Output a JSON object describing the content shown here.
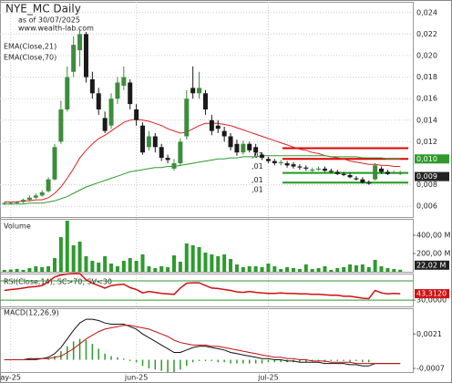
{
  "chart_data": {
    "type": "candlestick",
    "title": "NYE_MC Daily",
    "subtitle": "as of 30/07/2025",
    "source": "www.wealth-lab.com",
    "xlim": [
      -0.7,
      65
    ],
    "xticks": [
      {
        "value": 1,
        "label": "ay-25"
      },
      {
        "value": 21,
        "label": "jun-25"
      },
      {
        "value": 42,
        "label": "jul-25"
      }
    ],
    "ylim": [
      0.005,
      0.025
    ],
    "yticks": [
      {
        "value": 0.024,
        "label": "0,024"
      },
      {
        "value": 0.022,
        "label": "0,022"
      },
      {
        "value": 0.02,
        "label": "0,020"
      },
      {
        "value": 0.018,
        "label": "0,018"
      },
      {
        "value": 0.016,
        "label": "0,016"
      },
      {
        "value": 0.014,
        "label": "0,014"
      },
      {
        "value": 0.012,
        "label": "0,012"
      },
      {
        "value": 0.008,
        "label": "0,008"
      },
      {
        "value": 0.006,
        "label": "0,006"
      }
    ],
    "grid": true,
    "up_color": "#3d8c3d",
    "down_color": "#1a1a1a",
    "open": [
      0.0062,
      0.0063,
      0.0063,
      0.0064,
      0.0066,
      0.0068,
      0.007,
      0.0074,
      0.0085,
      0.012,
      0.015,
      0.0185,
      0.0205,
      0.022,
      0.0178,
      0.0165,
      0.0142,
      0.0135,
      0.016,
      0.0172,
      0.0175,
      0.015,
      0.0135,
      0.0115,
      0.0125,
      0.0115,
      0.0105,
      0.0095,
      0.01,
      0.0125,
      0.017,
      0.0165,
      0.0165,
      0.014,
      0.0135,
      0.013,
      0.0125,
      0.0118,
      0.011,
      0.0118,
      0.0115,
      0.0108,
      0.0104,
      0.0102,
      0.01,
      0.01,
      0.0099,
      0.0097,
      0.0096,
      0.0093,
      0.0094,
      0.0095,
      0.0093,
      0.0092,
      0.009,
      0.0089,
      0.0086,
      0.0085,
      0.0082,
      0.0085,
      0.0095,
      0.0092,
      0.0091,
      0.009
    ],
    "high": [
      0.0064,
      0.0064,
      0.0065,
      0.0067,
      0.007,
      0.0072,
      0.0075,
      0.0087,
      0.0118,
      0.0158,
      0.019,
      0.0218,
      0.0225,
      0.0222,
      0.0185,
      0.017,
      0.0148,
      0.0165,
      0.018,
      0.019,
      0.0178,
      0.0155,
      0.0138,
      0.013,
      0.0128,
      0.0118,
      0.0108,
      0.0104,
      0.0123,
      0.0168,
      0.019,
      0.0185,
      0.0168,
      0.0145,
      0.014,
      0.0134,
      0.0128,
      0.0122,
      0.0121,
      0.012,
      0.0118,
      0.011,
      0.0106,
      0.0104,
      0.0103,
      0.0102,
      0.0101,
      0.0099,
      0.0098,
      0.0096,
      0.0097,
      0.0097,
      0.0095,
      0.0094,
      0.0092,
      0.0091,
      0.0088,
      0.0087,
      0.0084,
      0.01,
      0.0097,
      0.0094,
      0.0093,
      0.0093
    ],
    "low": [
      0.0061,
      0.0062,
      0.0062,
      0.0063,
      0.0065,
      0.0067,
      0.0069,
      0.0073,
      0.0084,
      0.0118,
      0.0148,
      0.018,
      0.019,
      0.0175,
      0.016,
      0.0145,
      0.0128,
      0.0132,
      0.0155,
      0.0168,
      0.015,
      0.0135,
      0.0108,
      0.0112,
      0.011,
      0.0102,
      0.01,
      0.0093,
      0.0098,
      0.0122,
      0.016,
      0.016,
      0.0145,
      0.0126,
      0.0128,
      0.012,
      0.0112,
      0.0107,
      0.0108,
      0.011,
      0.0107,
      0.0103,
      0.01,
      0.0098,
      0.0098,
      0.0096,
      0.0095,
      0.0094,
      0.0093,
      0.0092,
      0.0093,
      0.0092,
      0.0091,
      0.0089,
      0.0088,
      0.0086,
      0.0084,
      0.0081,
      0.008,
      0.0084,
      0.009,
      0.0089,
      0.009,
      0.0089
    ],
    "close": [
      0.0063,
      0.0063,
      0.0064,
      0.0066,
      0.0068,
      0.007,
      0.0073,
      0.0085,
      0.0115,
      0.015,
      0.018,
      0.021,
      0.022,
      0.018,
      0.0165,
      0.015,
      0.013,
      0.016,
      0.0175,
      0.018,
      0.0155,
      0.014,
      0.011,
      0.0125,
      0.0115,
      0.0105,
      0.0103,
      0.01,
      0.012,
      0.016,
      0.0165,
      0.017,
      0.015,
      0.013,
      0.0132,
      0.0125,
      0.0115,
      0.011,
      0.0118,
      0.0112,
      0.011,
      0.0105,
      0.0102,
      0.01,
      0.0101,
      0.0098,
      0.0097,
      0.0096,
      0.0095,
      0.0094,
      0.0095,
      0.0093,
      0.0092,
      0.009,
      0.0089,
      0.0087,
      0.0085,
      0.0082,
      0.0081,
      0.0098,
      0.0092,
      0.009,
      0.0091,
      0.0091
    ],
    "close_label": "0,009",
    "series": [
      {
        "name": "EMA(Close,21)",
        "color": "#e02020",
        "values": [
          0.0064,
          0.0064,
          0.0064,
          0.0065,
          0.0065,
          0.0066,
          0.0066,
          0.0068,
          0.0072,
          0.0078,
          0.0086,
          0.0095,
          0.0105,
          0.0112,
          0.0118,
          0.0123,
          0.0126,
          0.013,
          0.0134,
          0.0138,
          0.014,
          0.0141,
          0.014,
          0.0139,
          0.0137,
          0.0135,
          0.0132,
          0.013,
          0.0128,
          0.0129,
          0.0132,
          0.0135,
          0.0137,
          0.0137,
          0.0137,
          0.0136,
          0.0135,
          0.0133,
          0.0131,
          0.0129,
          0.0127,
          0.0125,
          0.0123,
          0.0121,
          0.0119,
          0.0117,
          0.0115,
          0.0113,
          0.0112,
          0.011,
          0.0109,
          0.0107,
          0.0106,
          0.0105,
          0.0104,
          0.0102,
          0.0101,
          0.01,
          0.0099,
          0.0099,
          0.0098,
          0.0098,
          0.0097,
          0.0097
        ]
      },
      {
        "name": "EMA(Close,70)",
        "color": "#2e9a2e",
        "values": [
          0.0062,
          0.0062,
          0.0062,
          0.0062,
          0.0063,
          0.0063,
          0.0063,
          0.0064,
          0.0065,
          0.0067,
          0.0069,
          0.0072,
          0.0075,
          0.0078,
          0.008,
          0.0082,
          0.0084,
          0.0086,
          0.0088,
          0.009,
          0.0092,
          0.0093,
          0.0094,
          0.0095,
          0.0096,
          0.0096,
          0.0097,
          0.0097,
          0.0098,
          0.0099,
          0.01,
          0.0101,
          0.0102,
          0.0103,
          0.0104,
          0.0104,
          0.0105,
          0.0105,
          0.0106,
          0.0106,
          0.0106,
          0.0107,
          0.0107,
          0.0107,
          0.0107,
          0.0107,
          0.0107,
          0.0107,
          0.0107,
          0.0107,
          0.0107,
          0.0107,
          0.0106,
          0.0106,
          0.0106,
          0.0106,
          0.0106,
          0.0105,
          0.0105,
          0.0105,
          0.0105,
          0.0104,
          0.0104,
          0.0104
        ],
        "last_label": "0,010"
      }
    ],
    "price_lines": [
      {
        "value": 0.0114,
        "label": ",01",
        "color": "#e00000"
      },
      {
        "value": 0.0104,
        "label": ",01",
        "color": "#e00000"
      },
      {
        "value": 0.0091,
        "label": ",01",
        "color": "#1e9a1e"
      },
      {
        "value": 0.0082,
        "label": ",01",
        "color": "#1e9a1e"
      }
    ],
    "volume": {
      "title": "Volume",
      "color": "#2e9a2e",
      "ylim": [
        0,
        580
      ],
      "yticks": [
        {
          "value": 400,
          "label": "400,00 M"
        },
        {
          "value": 200,
          "label": "200,00 M"
        }
      ],
      "values": [
        20,
        25,
        30,
        20,
        40,
        60,
        50,
        60,
        150,
        380,
        560,
        290,
        330,
        170,
        120,
        100,
        170,
        90,
        60,
        120,
        150,
        120,
        190,
        60,
        40,
        60,
        50,
        180,
        110,
        310,
        290,
        270,
        210,
        190,
        170,
        190,
        140,
        80,
        50,
        60,
        60,
        50,
        90,
        60,
        30,
        50,
        40,
        30,
        80,
        30,
        40,
        60,
        20,
        40,
        50,
        80,
        70,
        80,
        50,
        130,
        60,
        40,
        30,
        22.02
      ],
      "last_label": "22,02 M"
    },
    "rsi": {
      "title": "RSI(Close,14), SC>70, SV<30",
      "color": "#d01010",
      "level_color": "#2e9a2e",
      "ylim": [
        17,
        85
      ],
      "levels": [
        70,
        30
      ],
      "yticks": [
        {
          "value": 30,
          "label": "30,0000"
        }
      ],
      "values": [
        50,
        52,
        53,
        55,
        57,
        58,
        60,
        68,
        78,
        82,
        84,
        85,
        85,
        72,
        65,
        60,
        55,
        60,
        62,
        63,
        56,
        52,
        45,
        48,
        46,
        44,
        43,
        42,
        55,
        65,
        66,
        66,
        60,
        55,
        54,
        52,
        50,
        47,
        46,
        48,
        46,
        45,
        44,
        44,
        45,
        44,
        44,
        43,
        43,
        42,
        42,
        41,
        40,
        40,
        38,
        38,
        36,
        34,
        33,
        50,
        45,
        43,
        44,
        43.312
      ],
      "last_label": "43,3120"
    },
    "macd": {
      "title": "MACD(12,26,9)",
      "ylim": [
        -0.001,
        0.0042
      ],
      "yticks": [
        {
          "value": 0.0021,
          "label": "0,0021"
        },
        {
          "value": -0.0007,
          "label": "-0,0007"
        }
      ],
      "macd_color": "#111111",
      "signal_color": "#c01010",
      "hist_color": "#2e9a2e",
      "macd": [
        0,
        0,
        0,
        0,
        0.0001,
        0.0001,
        0.0001,
        0.0002,
        0.0005,
        0.001,
        0.0017,
        0.0024,
        0.003,
        0.0033,
        0.0033,
        0.0032,
        0.003,
        0.0029,
        0.0029,
        0.0029,
        0.0027,
        0.0025,
        0.0021,
        0.0018,
        0.0015,
        0.0012,
        0.0009,
        0.0006,
        0.0006,
        0.0008,
        0.001,
        0.0011,
        0.0011,
        0.001,
        0.0009,
        0.0008,
        0.0006,
        0.0005,
        0.0004,
        0.0003,
        0.0002,
        0.0001,
        0.0001,
        0,
        0,
        -0.0001,
        -0.0001,
        -0.0002,
        -0.0002,
        -0.0002,
        -0.0002,
        -0.0003,
        -0.0003,
        -0.0003,
        -0.0003,
        -0.0004,
        -0.0004,
        -0.0005,
        -0.0005,
        -0.0003,
        -0.0003,
        -0.0003,
        -0.0003,
        -0.0003
      ],
      "signal": [
        0,
        0,
        0,
        0,
        0,
        0,
        0.0001,
        0.0001,
        0.0002,
        0.0003,
        0.0006,
        0.0009,
        0.0013,
        0.0017,
        0.002,
        0.0023,
        0.0025,
        0.0026,
        0.0027,
        0.0028,
        0.0028,
        0.0027,
        0.0026,
        0.0025,
        0.0023,
        0.0021,
        0.0019,
        0.0016,
        0.0014,
        0.0013,
        0.0012,
        0.0012,
        0.0012,
        0.0011,
        0.0011,
        0.001,
        0.0009,
        0.0008,
        0.0007,
        0.0006,
        0.0005,
        0.0004,
        0.0003,
        0.0002,
        0.0002,
        0.0001,
        0.0001,
        0,
        0,
        -0.0001,
        -0.0001,
        -0.0001,
        -0.0002,
        -0.0002,
        -0.0002,
        -0.0002,
        -0.0003,
        -0.0003,
        -0.0003,
        -0.0003,
        -0.0003,
        -0.0003,
        -0.0003,
        -0.0003
      ],
      "histogram": [
        0,
        0,
        0,
        0,
        0.0001,
        0.0001,
        0,
        0.0001,
        0.0003,
        0.0007,
        0.0011,
        0.0015,
        0.0017,
        0.0016,
        0.0013,
        0.0009,
        0.0005,
        0.0003,
        0.0002,
        0.0001,
        -0.0001,
        -0.0002,
        -0.0005,
        -0.0007,
        -0.0008,
        -0.0009,
        -0.001,
        -0.001,
        -0.0008,
        -0.0005,
        -0.0002,
        -0.0001,
        -0.0001,
        -0.0001,
        -0.0002,
        -0.0002,
        -0.0003,
        -0.0003,
        -0.0003,
        -0.0003,
        -0.0003,
        -0.0003,
        -0.0002,
        -0.0002,
        -0.0002,
        -0.0002,
        -0.0002,
        -0.0002,
        -0.0002,
        -0.0001,
        -0.0001,
        -0.0002,
        -0.0001,
        -0.0001,
        -0.0001,
        -0.0002,
        -0.0001,
        -0.0002,
        -0.0002,
        0,
        0,
        0,
        0,
        0
      ]
    }
  }
}
